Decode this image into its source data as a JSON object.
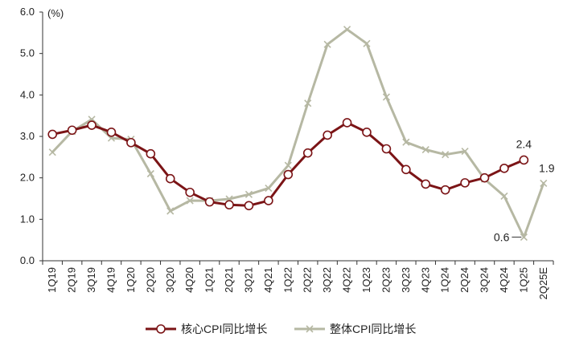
{
  "chart_data": {
    "type": "line",
    "unit_label": "(%)",
    "categories": [
      "1Q19",
      "2Q19",
      "3Q19",
      "4Q19",
      "1Q20",
      "2Q20",
      "3Q20",
      "4Q20",
      "1Q21",
      "2Q21",
      "3Q21",
      "4Q21",
      "1Q22",
      "2Q22",
      "3Q22",
      "4Q22",
      "1Q23",
      "2Q23",
      "3Q23",
      "4Q23",
      "1Q24",
      "2Q24",
      "3Q24",
      "4Q24",
      "1Q25",
      "2Q25E"
    ],
    "ylim": [
      0,
      6
    ],
    "yticks": [
      "0.0",
      "1.0",
      "2.0",
      "3.0",
      "4.0",
      "5.0",
      "6.0"
    ],
    "grid": false,
    "legend_position": "bottom",
    "series": [
      {
        "name": "核心CPI同比增长",
        "color": "#7b1416",
        "marker": "circle",
        "values": [
          3.05,
          3.15,
          3.27,
          3.1,
          2.85,
          2.58,
          1.98,
          1.65,
          1.42,
          1.35,
          1.33,
          1.45,
          2.08,
          2.6,
          3.03,
          3.33,
          3.1,
          2.7,
          2.2,
          1.85,
          1.71,
          1.88,
          2.0,
          2.23,
          2.43,
          null
        ]
      },
      {
        "name": "整体CPI同比增长",
        "color": "#b6b8a3",
        "marker": "x",
        "values": [
          2.62,
          3.12,
          3.41,
          2.96,
          2.93,
          2.1,
          1.2,
          1.45,
          1.45,
          1.49,
          1.6,
          1.75,
          2.3,
          3.8,
          5.22,
          5.58,
          5.24,
          3.95,
          2.86,
          2.68,
          2.56,
          2.64,
          1.97,
          1.56,
          0.57,
          1.87
        ]
      }
    ],
    "annotations": [
      {
        "text": "2.4",
        "series": 0,
        "index": 24
      },
      {
        "text": "1.9",
        "series": 1,
        "index": 25
      },
      {
        "text": "0.6",
        "series": 1,
        "index": 24
      }
    ]
  }
}
